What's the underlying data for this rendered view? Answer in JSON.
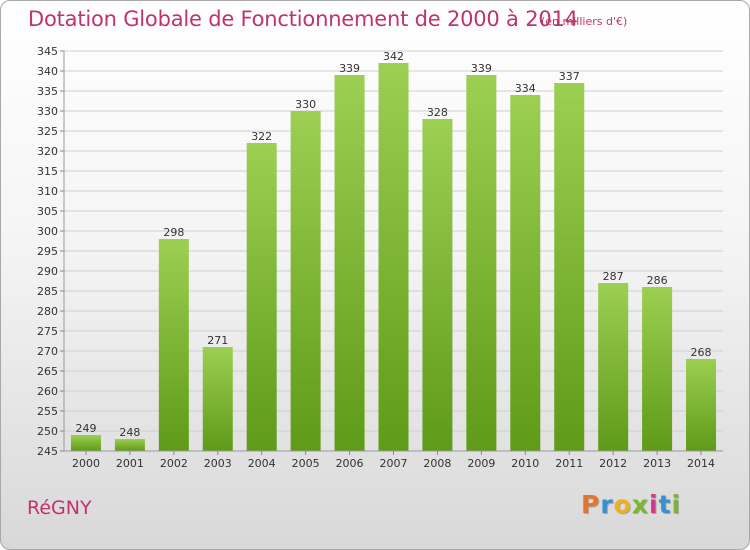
{
  "header": {
    "title": "Dotation Globale de Fonctionnement de 2000 à 2014",
    "unit_note": "(en milliers d'€)"
  },
  "footer": {
    "commune": "RéGNY",
    "logo_text": "Proxiti",
    "logo_letters": [
      "P",
      "r",
      "o",
      "x",
      "i",
      "t",
      "i"
    ],
    "logo_colors": [
      "#e8732a",
      "#3a8fd0",
      "#f0b020",
      "#7ab82e",
      "#d03a8a",
      "#3a8fd0",
      "#7ab82e"
    ]
  },
  "chart_data": {
    "type": "bar",
    "title": "Dotation Globale de Fonctionnement de 2000 à 2014",
    "subtitle": "(en milliers d'€)",
    "categories": [
      "2000",
      "2001",
      "2002",
      "2003",
      "2004",
      "2005",
      "2006",
      "2007",
      "2008",
      "2009",
      "2010",
      "2011",
      "2012",
      "2013",
      "2014"
    ],
    "values": [
      249,
      248,
      298,
      271,
      322,
      330,
      339,
      342,
      328,
      339,
      334,
      337,
      287,
      286,
      268
    ],
    "ylim": [
      245,
      345
    ],
    "yticks": [
      245,
      250,
      255,
      260,
      265,
      270,
      275,
      280,
      285,
      290,
      295,
      300,
      305,
      310,
      315,
      320,
      325,
      330,
      335,
      340,
      345
    ],
    "grid": true,
    "data_labels": true,
    "bar_color_top": "#9ccf52",
    "bar_color_bottom": "#5f9a18",
    "text_color": "#333333",
    "grid_color": "#cfcfcf"
  }
}
